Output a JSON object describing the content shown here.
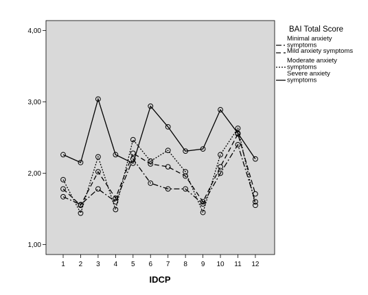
{
  "chart_data": {
    "type": "line",
    "xlabel": "IDCP",
    "ylabel": "",
    "x": [
      1,
      2,
      3,
      4,
      5,
      6,
      7,
      8,
      9,
      10,
      11,
      12
    ],
    "x_tick_labels": [
      "1",
      "2",
      "3",
      "4",
      "5",
      "6",
      "7",
      "8",
      "9",
      "10",
      "11",
      "12"
    ],
    "y_ticks": [
      1,
      2,
      3,
      4
    ],
    "y_tick_labels": [
      "1,00",
      "2,00",
      "3,00",
      "4,00"
    ],
    "ylim": [
      0.86,
      4.14
    ],
    "grid": false,
    "legend": {
      "title": "BAI Total Score",
      "placement": "right",
      "entries": [
        [
          "Minimal anxiety",
          "symptoms"
        ],
        [
          "Mild anxiety symptoms"
        ],
        [
          "Moderate anxiety",
          "symptoms"
        ],
        [
          "Severe anxiety",
          "symptoms"
        ]
      ]
    },
    "series": [
      {
        "name": "Minimal anxiety symptoms",
        "line_style": "dash-dot",
        "values": [
          1.67,
          1.56,
          1.78,
          1.6,
          2.2,
          1.86,
          1.78,
          1.78,
          1.57,
          2.0,
          2.4,
          1.6
        ]
      },
      {
        "name": "Mild anxiety symptoms",
        "line_style": "long-dash",
        "values": [
          1.78,
          1.55,
          2.02,
          1.65,
          2.28,
          2.13,
          2.09,
          1.96,
          1.6,
          2.09,
          2.55,
          1.71
        ]
      },
      {
        "name": "Moderate anxiety symptoms",
        "line_style": "dotted",
        "values": [
          1.91,
          1.44,
          2.23,
          1.49,
          2.47,
          2.17,
          2.32,
          2.02,
          1.45,
          2.26,
          2.63,
          1.55
        ]
      },
      {
        "name": "Severe anxiety symptoms",
        "line_style": "solid",
        "values": [
          2.26,
          2.15,
          3.04,
          2.26,
          2.14,
          2.94,
          2.65,
          2.31,
          2.34,
          2.89,
          2.56,
          2.2
        ]
      }
    ]
  },
  "colors": {
    "plot_background": "#d9d9d9",
    "line": "#000000",
    "page_background": "#ffffff"
  }
}
